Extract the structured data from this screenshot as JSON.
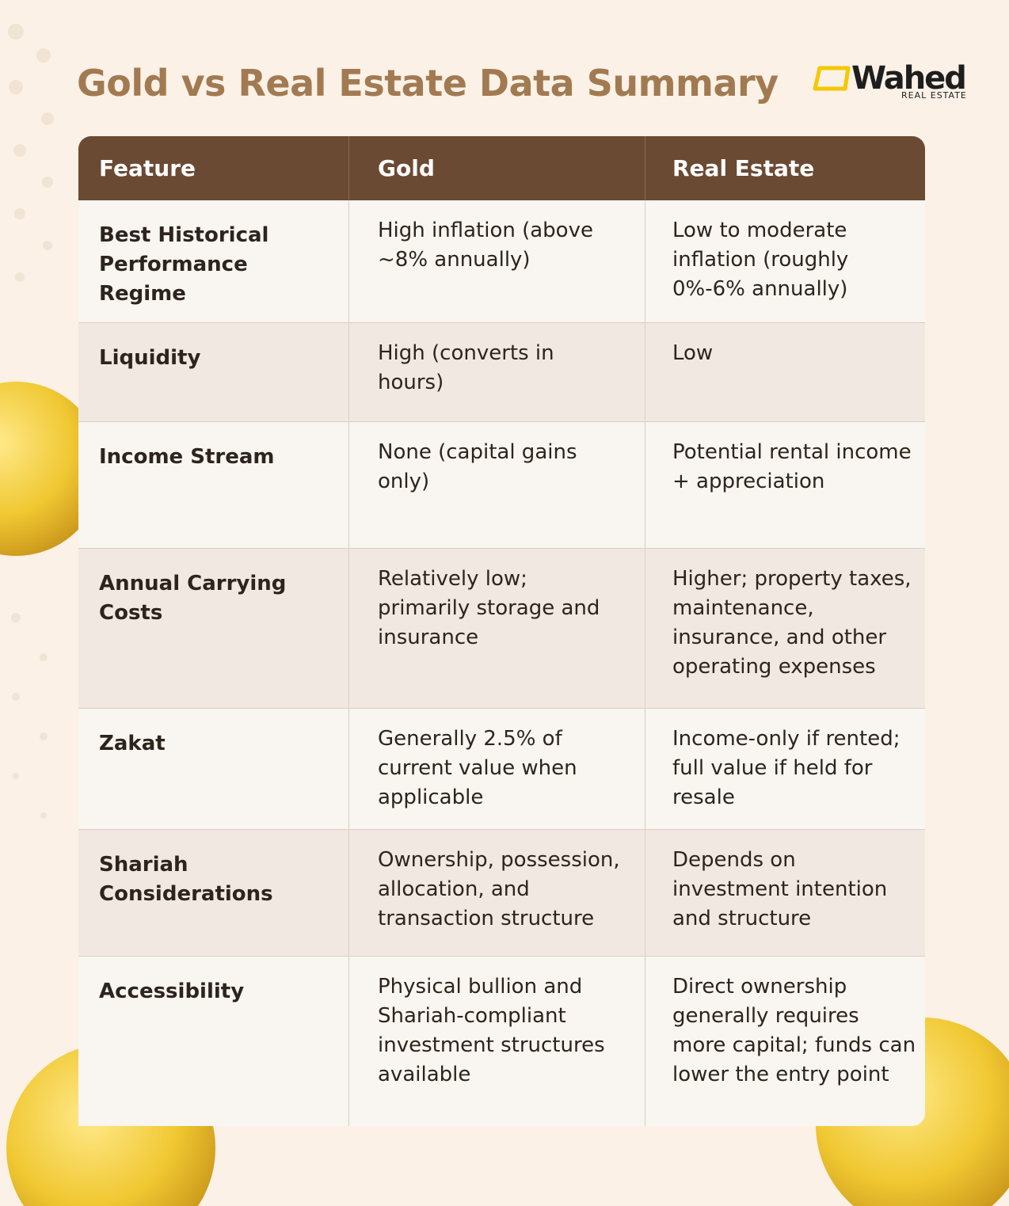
{
  "header": {
    "title": "Gold vs Real Estate Data Summary",
    "logo": "Wahed",
    "logo_sub": "REAL ESTATE"
  },
  "table": {
    "columns": [
      "Feature",
      "Gold",
      "Real Estate"
    ],
    "rows": [
      [
        "Best Historical Performance Regime",
        "High inflation (above ~8% annually)",
        "Low to moderate inflation (roughly 0%-6% annually)"
      ],
      [
        "Liquidity",
        "High (converts in hours)",
        "Low"
      ],
      [
        "Income Stream",
        "None (capital gains only)",
        "Potential rental income + appreciation"
      ],
      [
        "Annual Carrying Costs",
        "Relatively low; primarily storage and insurance",
        "Higher; property taxes, maintenance, insurance, and other operating expenses"
      ],
      [
        "Zakat",
        "Generally 2.5% of current value when applicable",
        "Income-only if rented; full value if held for resale"
      ],
      [
        "Shariah Considerations",
        "Ownership, possession, allocation, and transaction structure",
        "Depends on investment intention and structure"
      ],
      [
        "Accessibility",
        "Physical bullion and Shariah-compliant investment structures available",
        "Direct ownership generally requires more capital; funds can lower the entry point"
      ]
    ]
  }
}
